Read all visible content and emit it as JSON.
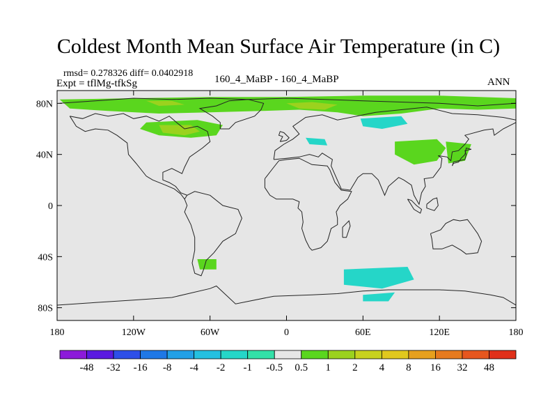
{
  "title": "Coldest Month Mean Surface Air Temperature (in C)",
  "stats": {
    "text": "rmsd= 0.278326 diff= 0.0402918"
  },
  "experiment": {
    "text": "Expt = tflMg-tfkSg"
  },
  "case_label": "160_4_MaBP - 160_4_MaBP",
  "season": "ANN",
  "chart_data": {
    "type": "heatmap",
    "title": "Coldest Month Mean Surface Air Temperature (in C)",
    "units": "C",
    "x_range": [
      -180,
      180
    ],
    "y_range": [
      -90,
      90
    ],
    "x_ticks": [
      {
        "value": -180,
        "label": "180"
      },
      {
        "value": -120,
        "label": "120W"
      },
      {
        "value": -60,
        "label": "60W"
      },
      {
        "value": 0,
        "label": "0"
      },
      {
        "value": 60,
        "label": "60E"
      },
      {
        "value": 120,
        "label": "120E"
      },
      {
        "value": 180,
        "label": "180"
      }
    ],
    "y_ticks": [
      {
        "value": 80,
        "label": "80N"
      },
      {
        "value": 40,
        "label": "40N"
      },
      {
        "value": 0,
        "label": "0"
      },
      {
        "value": -40,
        "label": "40S"
      },
      {
        "value": -80,
        "label": "80S"
      }
    ],
    "background_color": "#e6e6e6",
    "colorbar": {
      "levels": [
        "-48",
        "-32",
        "-16",
        "-8",
        "-4",
        "-2",
        "-1",
        "-0.5",
        "0.5",
        "1",
        "2",
        "4",
        "8",
        "16",
        "32",
        "48"
      ],
      "colors": [
        "#8c1ad9",
        "#5a1ae0",
        "#2e4fe8",
        "#1f78e6",
        "#23a0e6",
        "#25c0e0",
        "#25d6c8",
        "#33e0a8",
        "#e6e6e6",
        "#5ad61e",
        "#9bd21e",
        "#c8d21e",
        "#e0c81e",
        "#e6a01e",
        "#e67a1e",
        "#e6561e",
        "#e0301a"
      ]
    },
    "anomaly_regions": [
      {
        "name": "arctic-band",
        "color": "#5ad61e",
        "points": [
          [
            -178,
            83
          ],
          [
            -120,
            84
          ],
          [
            -60,
            85
          ],
          [
            0,
            85
          ],
          [
            60,
            86
          ],
          [
            120,
            86
          ],
          [
            180,
            84
          ],
          [
            180,
            76
          ],
          [
            150,
            75
          ],
          [
            120,
            76
          ],
          [
            90,
            72
          ],
          [
            60,
            70
          ],
          [
            40,
            73
          ],
          [
            10,
            75
          ],
          [
            -20,
            74
          ],
          [
            -60,
            73
          ],
          [
            -100,
            72
          ],
          [
            -140,
            74
          ],
          [
            -170,
            76
          ]
        ]
      },
      {
        "name": "n-america-warm",
        "color": "#5ad61e",
        "points": [
          [
            -110,
            65
          ],
          [
            -70,
            67
          ],
          [
            -50,
            63
          ],
          [
            -55,
            55
          ],
          [
            -75,
            53
          ],
          [
            -100,
            55
          ],
          [
            -115,
            60
          ]
        ]
      },
      {
        "name": "n-america-core",
        "color": "#9bd21e",
        "points": [
          [
            -100,
            63
          ],
          [
            -75,
            63
          ],
          [
            -68,
            58
          ],
          [
            -80,
            55
          ],
          [
            -97,
            57
          ]
        ]
      },
      {
        "name": "europe-warm",
        "color": "#9bd21e",
        "points": [
          [
            0,
            80
          ],
          [
            20,
            81
          ],
          [
            40,
            79
          ],
          [
            30,
            75
          ],
          [
            10,
            76
          ]
        ]
      },
      {
        "name": "arctic-west",
        "color": "#9bd21e",
        "points": [
          [
            -110,
            82
          ],
          [
            -90,
            82
          ],
          [
            -80,
            79
          ],
          [
            -100,
            78
          ]
        ]
      },
      {
        "name": "siberia-cool",
        "color": "#25d6c8",
        "points": [
          [
            58,
            68
          ],
          [
            90,
            70
          ],
          [
            95,
            64
          ],
          [
            75,
            60
          ],
          [
            60,
            62
          ]
        ]
      },
      {
        "name": "europe-cool",
        "color": "#25d6c8",
        "points": [
          [
            15,
            53
          ],
          [
            30,
            52
          ],
          [
            32,
            47
          ],
          [
            18,
            48
          ]
        ]
      },
      {
        "name": "asia-warm",
        "color": "#5ad61e",
        "points": [
          [
            85,
            50
          ],
          [
            118,
            52
          ],
          [
            125,
            45
          ],
          [
            118,
            35
          ],
          [
            100,
            32
          ],
          [
            85,
            40
          ]
        ]
      },
      {
        "name": "china-warm",
        "color": "#5ad61e",
        "points": [
          [
            125,
            50
          ],
          [
            145,
            48
          ],
          [
            140,
            35
          ],
          [
            127,
            33
          ]
        ]
      },
      {
        "name": "antarctica-cool",
        "color": "#25d6c8",
        "points": [
          [
            45,
            -50
          ],
          [
            95,
            -48
          ],
          [
            100,
            -58
          ],
          [
            75,
            -65
          ],
          [
            45,
            -62
          ]
        ]
      },
      {
        "name": "antarctica-east",
        "color": "#25d6c8",
        "points": [
          [
            60,
            -70
          ],
          [
            85,
            -68
          ],
          [
            80,
            -75
          ],
          [
            60,
            -75
          ]
        ]
      },
      {
        "name": "patagonia-warm",
        "color": "#5ad61e",
        "points": [
          [
            -70,
            -42
          ],
          [
            -55,
            -42
          ],
          [
            -55,
            -50
          ],
          [
            -68,
            -50
          ]
        ]
      }
    ],
    "coastlines": [
      [
        [
          -178,
          80
        ],
        [
          -150,
          82
        ],
        [
          -120,
          84
        ],
        [
          -90,
          83
        ],
        [
          -60,
          84
        ],
        [
          -30,
          83
        ],
        [
          0,
          84
        ],
        [
          30,
          83
        ],
        [
          60,
          82
        ],
        [
          90,
          81
        ],
        [
          120,
          80
        ],
        [
          150,
          78
        ],
        [
          180,
          80
        ]
      ],
      [
        [
          -170,
          70
        ],
        [
          -160,
          68
        ],
        [
          -150,
          72
        ],
        [
          -140,
          70
        ],
        [
          -128,
          72
        ],
        [
          -120,
          68
        ],
        [
          -110,
          70
        ],
        [
          -100,
          66
        ],
        [
          -92,
          70
        ],
        [
          -85,
          64
        ],
        [
          -80,
          60
        ],
        [
          -70,
          62
        ],
        [
          -62,
          58
        ],
        [
          -60,
          50
        ],
        [
          -66,
          45
        ],
        [
          -76,
          38
        ],
        [
          -80,
          30
        ],
        [
          -82,
          25
        ],
        [
          -90,
          29
        ],
        [
          -97,
          26
        ],
        [
          -97,
          20
        ],
        [
          -92,
          18
        ],
        [
          -87,
          15
        ],
        [
          -83,
          10
        ],
        [
          -78,
          8
        ],
        [
          -80,
          5
        ]
      ],
      [
        [
          -170,
          70
        ],
        [
          -165,
          62
        ],
        [
          -158,
          58
        ],
        [
          -150,
          60
        ],
        [
          -140,
          59
        ],
        [
          -133,
          55
        ],
        [
          -125,
          49
        ],
        [
          -124,
          40
        ],
        [
          -118,
          33
        ],
        [
          -110,
          23
        ],
        [
          -105,
          20
        ],
        [
          -95,
          16
        ],
        [
          -88,
          13
        ],
        [
          -83,
          9
        ],
        [
          -80,
          5
        ]
      ],
      [
        [
          -80,
          5
        ],
        [
          -78,
          0
        ],
        [
          -80,
          -5
        ],
        [
          -75,
          -15
        ],
        [
          -72,
          -25
        ],
        [
          -72,
          -35
        ],
        [
          -74,
          -45
        ],
        [
          -72,
          -53
        ],
        [
          -67,
          -55
        ],
        [
          -65,
          -50
        ],
        [
          -63,
          -43
        ],
        [
          -57,
          -37
        ],
        [
          -50,
          -28
        ],
        [
          -40,
          -22
        ],
        [
          -35,
          -10
        ],
        [
          -38,
          -3
        ],
        [
          -50,
          0
        ],
        [
          -60,
          8
        ],
        [
          -72,
          11
        ],
        [
          -78,
          8
        ]
      ],
      [
        [
          -10,
          36
        ],
        [
          -9,
          43
        ],
        [
          -2,
          48
        ],
        [
          5,
          52
        ],
        [
          10,
          56
        ],
        [
          5,
          62
        ],
        [
          15,
          69
        ],
        [
          28,
          71
        ],
        [
          40,
          67
        ],
        [
          55,
          70
        ],
        [
          70,
          73
        ],
        [
          90,
          75
        ],
        [
          110,
          77
        ],
        [
          130,
          72
        ],
        [
          150,
          71
        ],
        [
          170,
          69
        ],
        [
          180,
          67
        ]
      ],
      [
        [
          -10,
          36
        ],
        [
          0,
          37
        ],
        [
          10,
          38
        ],
        [
          18,
          40
        ],
        [
          25,
          38
        ],
        [
          28,
          41
        ],
        [
          36,
          36
        ],
        [
          35,
          31
        ],
        [
          43,
          13
        ],
        [
          50,
          12
        ],
        [
          56,
          22
        ],
        [
          60,
          25
        ],
        [
          67,
          25
        ],
        [
          72,
          20
        ],
        [
          77,
          8
        ],
        [
          80,
          15
        ],
        [
          88,
          22
        ],
        [
          92,
          20
        ],
        [
          98,
          16
        ],
        [
          100,
          8
        ],
        [
          104,
          1
        ],
        [
          106,
          10
        ],
        [
          109,
          15
        ],
        [
          108,
          21
        ],
        [
          115,
          22
        ],
        [
          121,
          30
        ],
        [
          122,
          37
        ],
        [
          119,
          39
        ],
        [
          126,
          38
        ],
        [
          129,
          35
        ],
        [
          130,
          42
        ],
        [
          135,
          43
        ],
        [
          140,
          48
        ],
        [
          143,
          52
        ],
        [
          140,
          55
        ],
        [
          155,
          59
        ],
        [
          162,
          60
        ],
        [
          163,
          55
        ],
        [
          170,
          60
        ],
        [
          180,
          65
        ]
      ],
      [
        [
          -17,
          21
        ],
        [
          -17,
          14
        ],
        [
          -13,
          8
        ],
        [
          -8,
          5
        ],
        [
          5,
          5
        ],
        [
          10,
          3
        ],
        [
          9,
          -2
        ],
        [
          12,
          -5
        ],
        [
          13,
          -13
        ],
        [
          12,
          -18
        ],
        [
          15,
          -27
        ],
        [
          18,
          -33
        ],
        [
          20,
          -35
        ],
        [
          27,
          -33
        ],
        [
          32,
          -28
        ],
        [
          33,
          -25
        ],
        [
          35,
          -18
        ],
        [
          40,
          -15
        ],
        [
          40,
          -10
        ],
        [
          39,
          -5
        ],
        [
          42,
          0
        ],
        [
          48,
          5
        ],
        [
          51,
          11
        ],
        [
          43,
          12
        ],
        [
          38,
          18
        ],
        [
          34,
          28
        ],
        [
          32,
          31
        ],
        [
          20,
          32
        ],
        [
          10,
          37
        ],
        [
          0,
          36
        ],
        [
          -6,
          35
        ],
        [
          -10,
          30
        ],
        [
          -17,
          21
        ]
      ],
      [
        [
          113,
          -22
        ],
        [
          114,
          -26
        ],
        [
          115,
          -34
        ],
        [
          122,
          -34
        ],
        [
          130,
          -31
        ],
        [
          137,
          -35
        ],
        [
          141,
          -38
        ],
        [
          150,
          -37
        ],
        [
          153,
          -28
        ],
        [
          150,
          -22
        ],
        [
          145,
          -15
        ],
        [
          142,
          -11
        ],
        [
          136,
          -12
        ],
        [
          131,
          -11
        ],
        [
          125,
          -14
        ],
        [
          121,
          -19
        ],
        [
          113,
          -22
        ]
      ],
      [
        [
          -180,
          -78
        ],
        [
          -150,
          -76
        ],
        [
          -120,
          -74
        ],
        [
          -90,
          -72
        ],
        [
          -60,
          -65
        ],
        [
          -55,
          -63
        ],
        [
          -40,
          -77
        ],
        [
          -10,
          -71
        ],
        [
          20,
          -70
        ],
        [
          40,
          -69
        ],
        [
          60,
          -67
        ],
        [
          80,
          -66
        ],
        [
          100,
          -66
        ],
        [
          120,
          -66
        ],
        [
          140,
          -67
        ],
        [
          160,
          -70
        ],
        [
          170,
          -72
        ],
        [
          180,
          -78
        ]
      ],
      [
        [
          -5,
          50
        ],
        [
          0,
          51
        ],
        [
          2,
          53
        ],
        [
          -2,
          57
        ],
        [
          -5,
          58
        ],
        [
          -6,
          55
        ],
        [
          -3,
          54
        ],
        [
          -5,
          50
        ]
      ],
      [
        [
          130,
          31
        ],
        [
          131,
          34
        ],
        [
          135,
          35
        ],
        [
          140,
          36
        ],
        [
          141,
          40
        ],
        [
          140,
          43
        ],
        [
          145,
          44
        ],
        [
          141,
          45
        ],
        [
          140,
          40
        ],
        [
          137,
          37
        ],
        [
          135,
          34
        ],
        [
          131,
          33
        ],
        [
          130,
          31
        ]
      ],
      [
        [
          -52,
          60
        ],
        [
          -45,
          60
        ],
        [
          -40,
          65
        ],
        [
          -25,
          70
        ],
        [
          -20,
          75
        ],
        [
          -18,
          80
        ],
        [
          -30,
          83
        ],
        [
          -45,
          82
        ],
        [
          -55,
          78
        ],
        [
          -68,
          76
        ],
        [
          -58,
          70
        ],
        [
          -52,
          65
        ],
        [
          -52,
          60
        ]
      ],
      [
        [
          44,
          -25
        ],
        [
          47,
          -25
        ],
        [
          50,
          -16
        ],
        [
          49,
          -12
        ],
        [
          44,
          -17
        ],
        [
          44,
          -25
        ]
      ],
      [
        [
          95,
          5
        ],
        [
          98,
          4
        ],
        [
          102,
          0
        ],
        [
          106,
          -3
        ],
        [
          105,
          -6
        ],
        [
          100,
          -3
        ],
        [
          95,
          5
        ]
      ],
      [
        [
          110,
          1
        ],
        [
          115,
          5
        ],
        [
          118,
          6
        ],
        [
          119,
          0
        ],
        [
          116,
          -4
        ],
        [
          110,
          -2
        ],
        [
          110,
          1
        ]
      ]
    ]
  }
}
